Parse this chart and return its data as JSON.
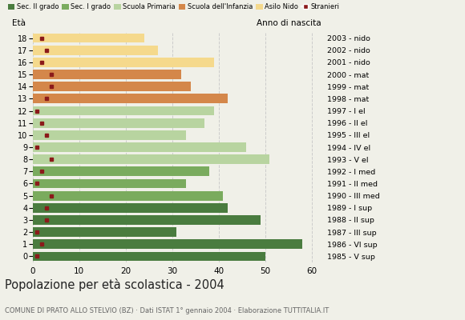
{
  "ages": [
    18,
    17,
    16,
    15,
    14,
    13,
    12,
    11,
    10,
    9,
    8,
    7,
    6,
    5,
    4,
    3,
    2,
    1,
    0
  ],
  "bar_values": [
    50,
    58,
    31,
    49,
    42,
    41,
    33,
    38,
    51,
    46,
    33,
    37,
    39,
    42,
    34,
    32,
    39,
    27,
    24
  ],
  "stranieri": [
    1,
    2,
    1,
    3,
    3,
    4,
    1,
    2,
    4,
    1,
    3,
    2,
    1,
    3,
    4,
    4,
    2,
    3,
    2
  ],
  "right_labels": [
    "1985 - V sup",
    "1986 - VI sup",
    "1987 - III sup",
    "1988 - II sup",
    "1989 - I sup",
    "1990 - III med",
    "1991 - II med",
    "1992 - I med",
    "1993 - V el",
    "1994 - IV el",
    "1995 - III el",
    "1996 - II el",
    "1997 - I el",
    "1998 - mat",
    "1999 - mat",
    "2000 - mat",
    "2001 - nido",
    "2002 - nido",
    "2003 - nido"
  ],
  "colors": {
    "sec2": "#4a7c3f",
    "sec1": "#7aab5e",
    "primaria": "#b8d4a0",
    "infanzia": "#d4874a",
    "nido": "#f5d98c",
    "stranieri": "#8b1a1a"
  },
  "legend_labels": [
    "Sec. II grado",
    "Sec. I grado",
    "Scuola Primaria",
    "Scuola dell'Infanzia",
    "Asilo Nido",
    "Stranieri"
  ],
  "title": "Popolazione per età scolastica - 2004",
  "subtitle": "COMUNE DI PRATO ALLO STELVIO (BZ) · Dati ISTAT 1° gennaio 2004 · Elaborazione TUTTITALIA.IT",
  "eta_label": "Età",
  "anno_label": "Anno di nascita",
  "xlim": [
    0,
    62
  ],
  "xticks": [
    0,
    10,
    20,
    30,
    40,
    50,
    60
  ],
  "bg_color": "#f0f0e8",
  "grid_color": "#cccccc"
}
